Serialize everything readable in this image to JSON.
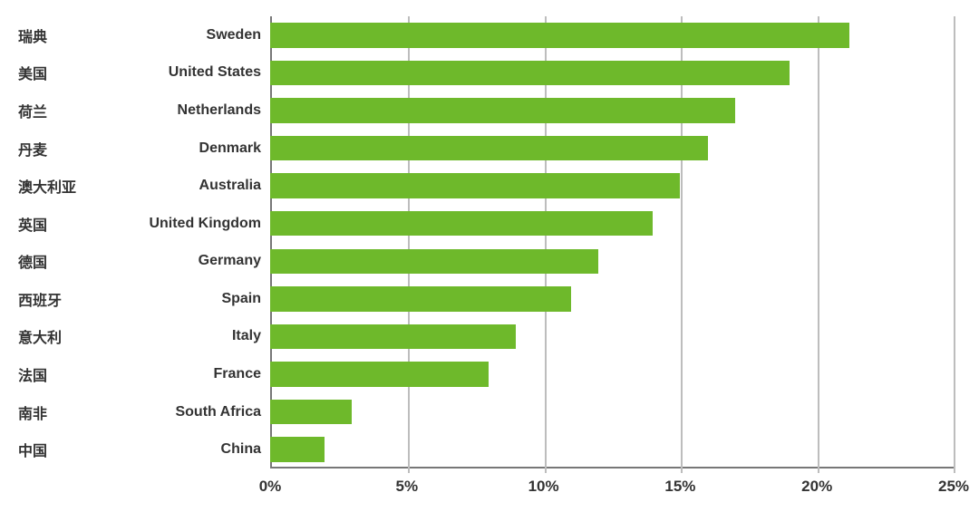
{
  "chart": {
    "type": "bar",
    "orientation": "horizontal",
    "background_color": "#ffffff",
    "bar_color": "#6eb92b",
    "bar_height_ratio": 0.66,
    "axis_color": "#777777",
    "grid_color": "#bdbdbd",
    "text_color": "#333333",
    "font_family": "Verdana, Arial, sans-serif",
    "label_fontsize": 16,
    "label_fontweight": "700",
    "tick_fontsize": 17,
    "tick_fontweight": "700",
    "x_axis": {
      "min": 0,
      "max": 25,
      "tick_step": 5,
      "tick_labels": [
        "0%",
        "5%",
        "10%",
        "15%",
        "20%",
        "25%"
      ]
    },
    "rows": [
      {
        "label_secondary": "瑞典",
        "label_primary": "Sweden",
        "value": 21.2
      },
      {
        "label_secondary": "美国",
        "label_primary": "United States",
        "value": 19.0
      },
      {
        "label_secondary": "荷兰",
        "label_primary": "Netherlands",
        "value": 17.0
      },
      {
        "label_secondary": "丹麦",
        "label_primary": "Denmark",
        "value": 16.0
      },
      {
        "label_secondary": "澳大利亚",
        "label_primary": "Australia",
        "value": 15.0
      },
      {
        "label_secondary": "英国",
        "label_primary": "United Kingdom",
        "value": 14.0
      },
      {
        "label_secondary": "德国",
        "label_primary": "Germany",
        "value": 12.0
      },
      {
        "label_secondary": "西班牙",
        "label_primary": "Spain",
        "value": 11.0
      },
      {
        "label_secondary": "意大利",
        "label_primary": "Italy",
        "value": 9.0
      },
      {
        "label_secondary": "法国",
        "label_primary": "France",
        "value": 8.0
      },
      {
        "label_secondary": "南非",
        "label_primary": "South Africa",
        "value": 3.0
      },
      {
        "label_secondary": "中国",
        "label_primary": "China",
        "value": 2.0
      }
    ]
  }
}
